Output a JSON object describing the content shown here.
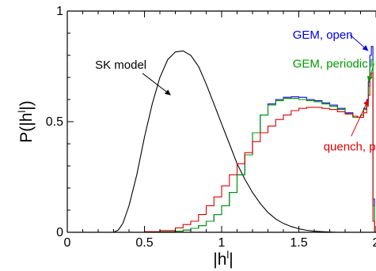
{
  "chart_data": {
    "type": "line",
    "title": "",
    "xlabel": "|h",
    "xlabel_sup": "l",
    "xlabel_end": "|",
    "ylabel": "P(|h",
    "ylabel_sup": "l",
    "ylabel_end": "|)",
    "xlim": [
      0,
      2
    ],
    "ylim": [
      0,
      1
    ],
    "x_ticks": [
      0,
      0.5,
      1,
      1.5,
      2
    ],
    "x_tick_labels": [
      "0",
      "0.5",
      "1",
      "1.5",
      "2"
    ],
    "y_ticks": [
      0,
      0.5,
      1
    ],
    "y_tick_labels": [
      "0",
      "0.5",
      "1"
    ],
    "grid": false,
    "legend": "none",
    "series": [
      {
        "name": "SK model",
        "color": "#000000",
        "step": false,
        "x": [
          0.3,
          0.33,
          0.36,
          0.4,
          0.45,
          0.5,
          0.55,
          0.6,
          0.65,
          0.7,
          0.75,
          0.8,
          0.85,
          0.9,
          0.95,
          1.0,
          1.05,
          1.1,
          1.15,
          1.2,
          1.25,
          1.3,
          1.35,
          1.4,
          1.45,
          1.5,
          1.55,
          1.6,
          1.65,
          1.7,
          1.75,
          1.8,
          1.85
        ],
        "values": [
          0.0,
          0.01,
          0.04,
          0.12,
          0.26,
          0.43,
          0.58,
          0.7,
          0.78,
          0.815,
          0.82,
          0.8,
          0.75,
          0.67,
          0.58,
          0.49,
          0.4,
          0.31,
          0.24,
          0.18,
          0.13,
          0.09,
          0.06,
          0.04,
          0.026,
          0.016,
          0.009,
          0.005,
          0.003,
          0.001,
          0.0,
          0.0,
          0.0
        ]
      },
      {
        "name": "GEM, open",
        "color": "#0000dd",
        "step": true,
        "x": [
          0.5,
          0.6,
          0.7,
          0.75,
          0.8,
          0.85,
          0.9,
          0.95,
          1.0,
          1.05,
          1.1,
          1.15,
          1.2,
          1.25,
          1.3,
          1.35,
          1.4,
          1.45,
          1.5,
          1.55,
          1.6,
          1.65,
          1.7,
          1.75,
          1.8,
          1.85,
          1.88,
          1.9,
          1.92,
          1.94,
          1.95,
          1.96,
          1.97,
          1.98,
          1.99,
          2.0
        ],
        "values": [
          0.0,
          0.002,
          0.005,
          0.01,
          0.018,
          0.03,
          0.05,
          0.08,
          0.12,
          0.18,
          0.26,
          0.35,
          0.45,
          0.53,
          0.58,
          0.6,
          0.61,
          0.612,
          0.61,
          0.6,
          0.595,
          0.585,
          0.575,
          0.56,
          0.54,
          0.525,
          0.52,
          0.53,
          0.56,
          0.6,
          0.68,
          0.8,
          0.84,
          0.15,
          0.0,
          0.0
        ]
      },
      {
        "name": "GEM, periodic",
        "color": "#009900",
        "step": true,
        "x": [
          0.5,
          0.6,
          0.7,
          0.75,
          0.8,
          0.85,
          0.9,
          0.95,
          1.0,
          1.05,
          1.1,
          1.15,
          1.2,
          1.25,
          1.3,
          1.35,
          1.4,
          1.45,
          1.5,
          1.55,
          1.6,
          1.65,
          1.7,
          1.75,
          1.8,
          1.85,
          1.88,
          1.9,
          1.92,
          1.94,
          1.95,
          1.96,
          1.97,
          1.98,
          1.99,
          2.0
        ],
        "values": [
          0.0,
          0.002,
          0.005,
          0.01,
          0.018,
          0.03,
          0.05,
          0.08,
          0.12,
          0.18,
          0.26,
          0.35,
          0.45,
          0.53,
          0.575,
          0.595,
          0.605,
          0.605,
          0.6,
          0.595,
          0.59,
          0.58,
          0.57,
          0.555,
          0.535,
          0.52,
          0.52,
          0.53,
          0.555,
          0.59,
          0.66,
          0.75,
          0.78,
          0.12,
          0.0,
          0.0
        ]
      },
      {
        "name": "quench, periodic",
        "color": "#dd0000",
        "step": true,
        "x": [
          0.4,
          0.5,
          0.6,
          0.7,
          0.75,
          0.8,
          0.85,
          0.9,
          0.95,
          1.0,
          1.05,
          1.1,
          1.15,
          1.2,
          1.25,
          1.3,
          1.35,
          1.4,
          1.45,
          1.5,
          1.55,
          1.6,
          1.65,
          1.7,
          1.75,
          1.8,
          1.85,
          1.88,
          1.9,
          1.92,
          1.94,
          1.95,
          1.96,
          1.97,
          1.98,
          1.99,
          2.0
        ],
        "values": [
          0.0,
          0.003,
          0.008,
          0.02,
          0.035,
          0.05,
          0.08,
          0.12,
          0.16,
          0.21,
          0.26,
          0.31,
          0.36,
          0.41,
          0.45,
          0.48,
          0.51,
          0.53,
          0.55,
          0.56,
          0.565,
          0.565,
          0.56,
          0.555,
          0.545,
          0.535,
          0.525,
          0.52,
          0.52,
          0.54,
          0.57,
          0.62,
          0.7,
          0.72,
          0.05,
          0.0,
          0.0
        ]
      }
    ],
    "annotations": [
      {
        "text": "SK model",
        "color": "#000000",
        "x": 0.18,
        "y": 0.74,
        "arrow_to": [
          0.67,
          0.62
        ]
      },
      {
        "text": "GEM, open",
        "color": "#0000dd",
        "x": 1.46,
        "y": 0.875,
        "arrow_to": [
          1.95,
          0.82
        ]
      },
      {
        "text": "GEM, periodic",
        "color": "#009900",
        "x": 1.46,
        "y": 0.745,
        "arrow_to": [
          1.95,
          0.68
        ]
      },
      {
        "text": "quench, periodic",
        "color": "#dd0000",
        "x": 1.66,
        "y": 0.37,
        "arrow_to": [
          1.95,
          0.6
        ]
      }
    ]
  }
}
